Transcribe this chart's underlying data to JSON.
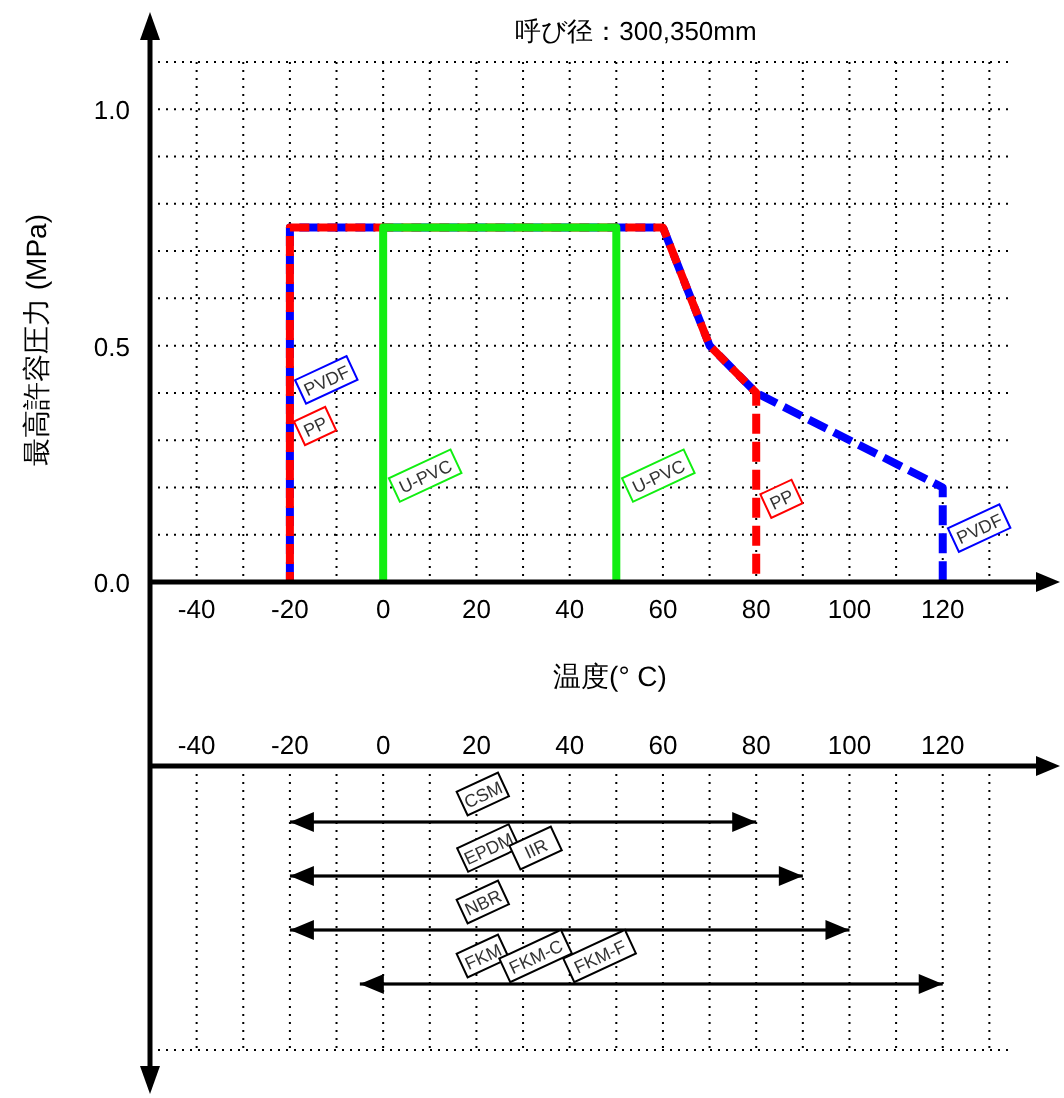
{
  "chart_data": [
    {
      "type": "line",
      "title": "呼び径：300,350mm",
      "xlabel": "温度(° C)",
      "ylabel": "最高許容圧力 (MPa)",
      "xlim": [
        -50,
        140
      ],
      "xticks": [
        -40,
        {
          "value": -30,
          "label": null
        },
        -20,
        {
          "value": -10,
          "label": null
        },
        0,
        {
          "value": 10,
          "label": null
        },
        20,
        {
          "value": 30,
          "label": null
        },
        40,
        {
          "value": 50,
          "label": null
        },
        60,
        {
          "value": 70,
          "label": null
        },
        80,
        {
          "value": 90,
          "label": null
        },
        100,
        {
          "value": 110,
          "label": null
        },
        120,
        {
          "value": 130,
          "label": null
        }
      ],
      "ylim": [
        0,
        1.1
      ],
      "yticks": [
        {
          "value": 0,
          "label": "0.0"
        },
        {
          "value": 0.1,
          "label": null
        },
        {
          "value": 0.2,
          "label": null
        },
        {
          "value": 0.3,
          "label": null
        },
        {
          "value": 0.4,
          "label": null
        },
        {
          "value": 0.5,
          "label": "0.5"
        },
        {
          "value": 0.6,
          "label": null
        },
        {
          "value": 0.7,
          "label": null
        },
        {
          "value": 0.8,
          "label": null
        },
        {
          "value": 0.9,
          "label": null
        },
        {
          "value": 1.0,
          "label": "1.0"
        },
        {
          "value": 1.1,
          "label": null
        }
      ],
      "grid": true,
      "series": [
        {
          "name": "PVDF",
          "color": "#0000ff",
          "line_style": "dashed",
          "x": [
            -20,
            -20,
            60,
            70,
            80,
            120,
            120
          ],
          "values": [
            0,
            0.75,
            0.75,
            0.5,
            0.4,
            0.2,
            0
          ]
        },
        {
          "name": "PP",
          "color": "#ff0000",
          "line_style": "dashed",
          "x": [
            -20,
            -20,
            60,
            70,
            80,
            80
          ],
          "values": [
            0,
            0.75,
            0.75,
            0.5,
            0.4,
            0
          ]
        },
        {
          "name": "U-PVC",
          "color": "#11ee11",
          "line_style": "solid",
          "x": [
            0,
            0,
            50,
            50
          ],
          "values": [
            0,
            0.75,
            0.75,
            0
          ]
        }
      ]
    },
    {
      "type": "bar",
      "orientation": "horizontal",
      "color": "#000000",
      "categories": [
        "CSM",
        "EPDM IIR",
        "NBR",
        "FKM FKM-C FKM-F"
      ],
      "base": [
        -20,
        -20,
        -20,
        -5
      ],
      "values": [
        100,
        110,
        120,
        125
      ],
      "xlim": [
        -50,
        140
      ],
      "xticks": [
        -40,
        {
          "value": -30,
          "label": null
        },
        -20,
        {
          "value": -10,
          "label": null
        },
        0,
        {
          "value": 10,
          "label": null
        },
        20,
        {
          "value": 30,
          "label": null
        },
        40,
        {
          "value": 50,
          "label": null
        },
        60,
        {
          "value": 70,
          "label": null
        },
        80,
        {
          "value": 90,
          "label": null
        },
        100,
        {
          "value": 110,
          "label": null
        },
        120,
        {
          "value": 130,
          "label": null
        }
      ],
      "grid": "x"
    }
  ]
}
